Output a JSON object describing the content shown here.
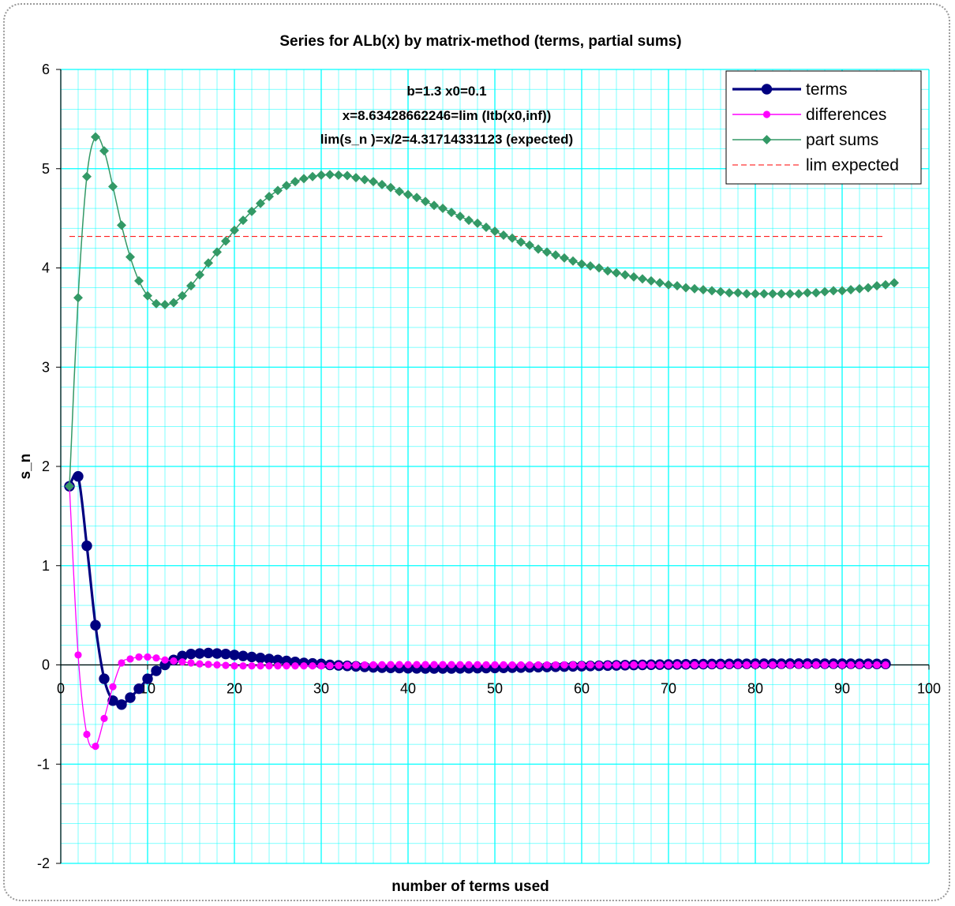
{
  "chart_data": {
    "type": "line",
    "title": "Series for ALb(x) by matrix-method (terms, partial sums)",
    "xlabel": "number of terms used",
    "ylabel": "s_n",
    "xlim": [
      0,
      100
    ],
    "ylim": [
      -2,
      6
    ],
    "x_ticks": [
      "0",
      "10",
      "20",
      "30",
      "40",
      "50",
      "60",
      "70",
      "80",
      "90",
      "100"
    ],
    "y_ticks": [
      "-2",
      "-1",
      "0",
      "1",
      "2",
      "3",
      "4",
      "5",
      "6"
    ],
    "annotations": [
      "b=1.3 x0=0.1",
      "x=8.63428662246=lim (Itb(x0,inf))",
      "lim(s_n )=x/2=4.31714331123 (expected)"
    ],
    "grid": true,
    "legend_position": "top-right",
    "series": [
      {
        "name": "terms",
        "color": "#000080",
        "marker": "circle",
        "x_start": 1,
        "x_step": 1,
        "values": [
          1.8,
          1.9,
          1.2,
          0.4,
          -0.14,
          -0.36,
          -0.4,
          -0.33,
          -0.24,
          -0.14,
          -0.06,
          0.0,
          0.05,
          0.09,
          0.11,
          0.115,
          0.12,
          0.115,
          0.11,
          0.1,
          0.09,
          0.08,
          0.07,
          0.06,
          0.05,
          0.04,
          0.03,
          0.02,
          0.015,
          0.01,
          0.0,
          -0.005,
          -0.01,
          -0.015,
          -0.02,
          -0.025,
          -0.028,
          -0.03,
          -0.032,
          -0.034,
          -0.035,
          -0.036,
          -0.036,
          -0.036,
          -0.036,
          -0.035,
          -0.034,
          -0.033,
          -0.032,
          -0.031,
          -0.03,
          -0.028,
          -0.027,
          -0.025,
          -0.023,
          -0.021,
          -0.019,
          -0.017,
          -0.015,
          -0.013,
          -0.011,
          -0.009,
          -0.007,
          -0.005,
          -0.003,
          -0.001,
          0.0,
          0.002,
          0.003,
          0.004,
          0.005,
          0.006,
          0.007,
          0.008,
          0.009,
          0.009,
          0.01,
          0.011,
          0.011,
          0.012,
          0.012,
          0.012,
          0.012,
          0.013,
          0.013,
          0.013,
          0.013,
          0.012,
          0.012,
          0.012,
          0.012,
          0.011,
          0.011,
          0.01,
          0.01
        ]
      },
      {
        "name": "differences",
        "color": "#ff00ff",
        "marker": "circle-small",
        "x_start": 1,
        "x_step": 1,
        "values": [
          1.8,
          0.1,
          -0.7,
          -0.82,
          -0.54,
          -0.22,
          0.02,
          0.06,
          0.08,
          0.08,
          0.07,
          0.05,
          0.04,
          0.03,
          0.02,
          0.01,
          0.005,
          0.0,
          -0.005,
          -0.01,
          -0.01,
          -0.01,
          -0.01,
          -0.01,
          -0.01,
          -0.01,
          -0.01,
          -0.01,
          -0.01,
          -0.01,
          -0.008,
          -0.006,
          -0.004,
          -0.002,
          0.0,
          0.001,
          0.002,
          0.003,
          0.003,
          0.003,
          0.003,
          0.003,
          0.003,
          0.003,
          0.003,
          0.002,
          0.002,
          0.002,
          0.001,
          0.001,
          0.001,
          0.0,
          0.0,
          0.0,
          0.0,
          0.0,
          0.0,
          0.0,
          0.0,
          0.0,
          0.0,
          0.0,
          0.0,
          0.0,
          0.0,
          0.0,
          0.0,
          0.0,
          0.0,
          0.0,
          0.0,
          0.0,
          0.0,
          0.0,
          0.0,
          0.0,
          0.0,
          0.0,
          0.0,
          0.0,
          0.0,
          0.0,
          0.0,
          0.0,
          0.0,
          0.0,
          0.0,
          0.0,
          0.0,
          0.0,
          0.0,
          0.0,
          0.0,
          0.0,
          0.0
        ]
      },
      {
        "name": "part sums",
        "color": "#339966",
        "marker": "diamond",
        "x_start": 1,
        "x_step": 1,
        "values": [
          1.8,
          3.7,
          4.92,
          5.32,
          5.18,
          4.82,
          4.43,
          4.11,
          3.87,
          3.72,
          3.64,
          3.63,
          3.65,
          3.72,
          3.82,
          3.93,
          4.05,
          4.16,
          4.27,
          4.38,
          4.48,
          4.57,
          4.65,
          4.72,
          4.78,
          4.83,
          4.87,
          4.9,
          4.92,
          4.935,
          4.94,
          4.935,
          4.93,
          4.91,
          4.89,
          4.87,
          4.84,
          4.81,
          4.77,
          4.74,
          4.71,
          4.67,
          4.63,
          4.6,
          4.56,
          4.52,
          4.48,
          4.45,
          4.41,
          4.37,
          4.33,
          4.3,
          4.26,
          4.23,
          4.19,
          4.16,
          4.13,
          4.1,
          4.07,
          4.04,
          4.02,
          4.0,
          3.97,
          3.95,
          3.93,
          3.91,
          3.89,
          3.87,
          3.85,
          3.83,
          3.82,
          3.8,
          3.79,
          3.78,
          3.77,
          3.76,
          3.75,
          3.75,
          3.74,
          3.74,
          3.74,
          3.74,
          3.74,
          3.74,
          3.74,
          3.75,
          3.75,
          3.76,
          3.77,
          3.77,
          3.78,
          3.79,
          3.8,
          3.82,
          3.83,
          3.85
        ]
      },
      {
        "name": "lim expected",
        "color": "#ff0000",
        "marker": "none",
        "dashed": true,
        "x": [
          1,
          95
        ],
        "values": [
          4.31714331123,
          4.31714331123
        ]
      }
    ]
  }
}
